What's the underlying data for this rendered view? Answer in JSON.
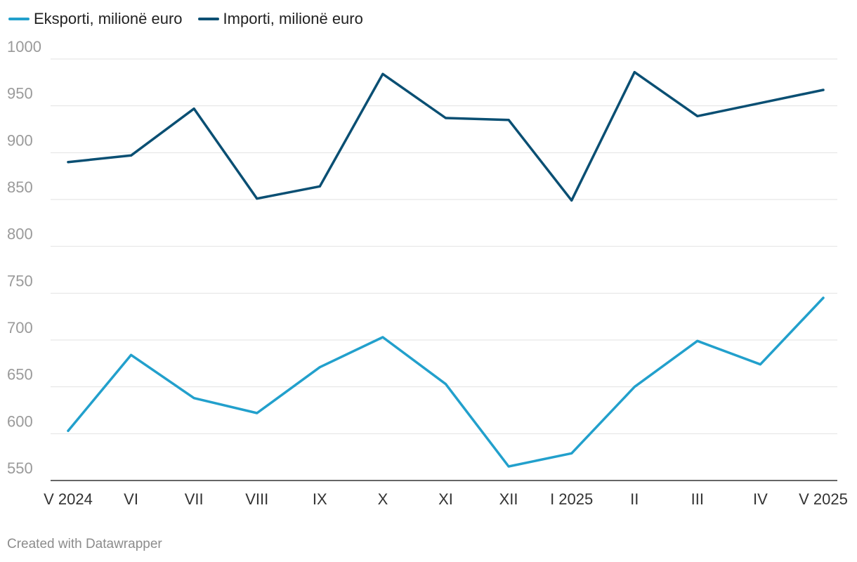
{
  "chart_data": {
    "type": "line",
    "categories": [
      "V 2024",
      "VI",
      "VII",
      "VIII",
      "IX",
      "X",
      "XI",
      "XII",
      "I 2025",
      "II",
      "III",
      "IV",
      "V 2025"
    ],
    "series": [
      {
        "name": "Eksporti, milionë euro",
        "color": "#22a0cc",
        "values": [
          603,
          684,
          638,
          622,
          671,
          703,
          653,
          565,
          579,
          650,
          699,
          674,
          745
        ]
      },
      {
        "name": "Importi, milionë euro",
        "color": "#0a4f73",
        "values": [
          890,
          897,
          947,
          851,
          864,
          984,
          937,
          935,
          849,
          986,
          939,
          953,
          967
        ]
      }
    ],
    "y_ticks": [
      550,
      600,
      650,
      700,
      750,
      800,
      850,
      900,
      950,
      1000
    ],
    "ylim": [
      550,
      1000
    ],
    "grid": true,
    "legend_position": "top-left"
  },
  "footer": {
    "credit": "Created with Datawrapper"
  }
}
